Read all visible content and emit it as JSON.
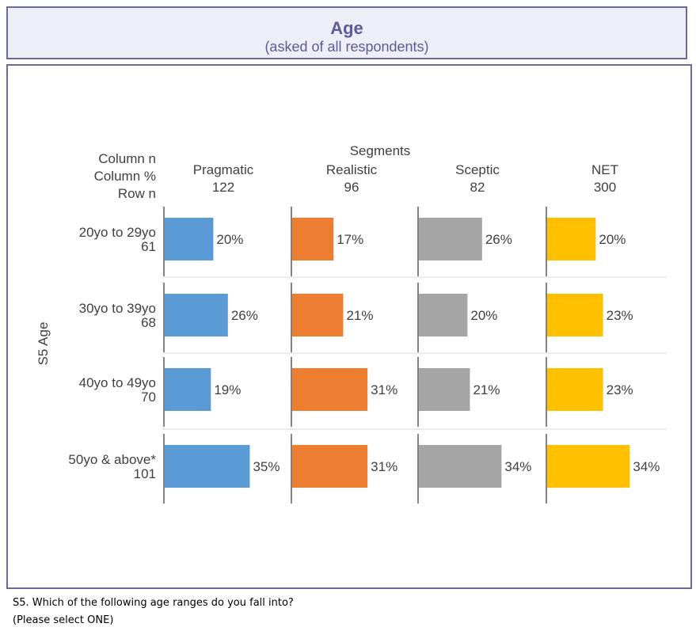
{
  "header": {
    "title": "Age",
    "subtitle": "(asked of all respondents)"
  },
  "chart_data": {
    "type": "bar",
    "orientation": "horizontal-small-multiples",
    "corner_labels": [
      "Column n",
      "Column %",
      "Row n"
    ],
    "group_label": "Segments",
    "ylabel": "S5 Age",
    "columns": [
      {
        "name": "Pragmatic",
        "n": "122",
        "color": "#5b9bd5"
      },
      {
        "name": "Realistic",
        "n": "96",
        "color": "#ed7d31"
      },
      {
        "name": "Sceptic",
        "n": "82",
        "color": "#a5a5a5"
      },
      {
        "name": "NET",
        "n": "300",
        "color": "#ffc000"
      }
    ],
    "rows": [
      {
        "label": "20yo to 29yo",
        "n": "61",
        "values": [
          20,
          17,
          26,
          20
        ]
      },
      {
        "label": "30yo to 39yo",
        "n": "68",
        "values": [
          26,
          21,
          20,
          23
        ]
      },
      {
        "label": "40yo to 49yo",
        "n": "70",
        "values": [
          19,
          31,
          21,
          23
        ]
      },
      {
        "label": "50yo & above*",
        "n": "101",
        "values": [
          35,
          31,
          34,
          34
        ]
      }
    ],
    "value_suffix": "%",
    "xlim": [
      0,
      100
    ],
    "grid": false
  },
  "footer": {
    "question": "S5. Which of the following age ranges do you fall into?",
    "instruction": "(Please select ONE)"
  }
}
